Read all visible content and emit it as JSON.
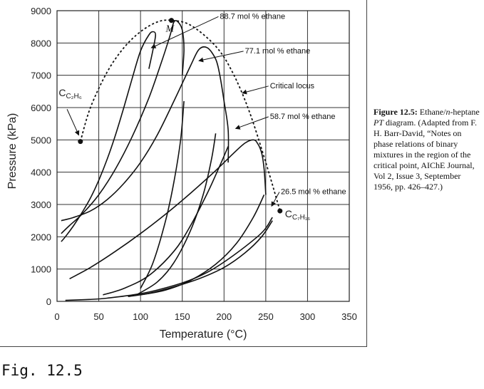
{
  "chart_data": {
    "type": "line",
    "xlabel": "Temperature (°C)",
    "ylabel": "Pressure (kPa)",
    "xlim": [
      0,
      350
    ],
    "ylim": [
      0,
      9000
    ],
    "xticks": [
      0,
      50,
      100,
      150,
      200,
      250,
      300,
      350
    ],
    "yticks": [
      0,
      1000,
      2000,
      3000,
      4000,
      5000,
      6000,
      7000,
      8000,
      9000
    ],
    "grid": true,
    "series": [
      {
        "name": "",
        "x": [
          5,
          10,
          20,
          30,
          40,
          50,
          60,
          70,
          80,
          90,
          100,
          110,
          115,
          118,
          115,
          110
        ],
        "y": [
          1850,
          2000,
          2350,
          2750,
          3200,
          3750,
          4400,
          5150,
          6000,
          6900,
          7750,
          8250,
          8350,
          8250,
          7800,
          7200
        ]
      },
      {
        "name": "",
        "x": [
          5,
          15,
          30,
          50,
          70,
          90,
          110,
          125,
          135,
          140,
          145,
          150,
          152,
          150
        ],
        "y": [
          2100,
          2350,
          2700,
          3300,
          4100,
          5100,
          6300,
          7400,
          8200,
          8650,
          8650,
          8400,
          7800,
          7000
        ]
      },
      {
        "name": "",
        "x": [
          5,
          20,
          40,
          60,
          80,
          100,
          120,
          140,
          160,
          170,
          180,
          190,
          195,
          200,
          205,
          205
        ],
        "y": [
          2500,
          2600,
          2800,
          3150,
          3650,
          4300,
          5150,
          6200,
          7300,
          7800,
          7850,
          7500,
          7000,
          6200,
          5300,
          4300
        ]
      },
      {
        "name": "",
        "x": [
          15,
          40,
          70,
          100,
          130,
          160,
          190,
          210,
          225,
          235,
          240,
          245,
          248,
          250
        ],
        "y": [
          700,
          1050,
          1550,
          2100,
          2700,
          3350,
          4050,
          4550,
          4900,
          5000,
          4900,
          4600,
          4100,
          3300
        ]
      },
      {
        "name": "",
        "x": [
          85,
          110,
          140,
          170,
          200,
          225,
          245,
          258
        ],
        "y": [
          150,
          250,
          450,
          700,
          1050,
          1500,
          2000,
          2500
        ]
      },
      {
        "name": "",
        "x": [
          100,
          130,
          160,
          190,
          215,
          235,
          248
        ],
        "y": [
          200,
          350,
          650,
          1150,
          1800,
          2600,
          3300
        ]
      },
      {
        "name": "",
        "x": [
          55,
          80,
          110,
          140,
          160,
          180,
          195,
          205
        ],
        "y": [
          200,
          400,
          800,
          1550,
          2350,
          3350,
          4200,
          4800
        ]
      },
      {
        "name": "",
        "x": [
          95,
          120,
          140,
          160,
          175,
          185,
          190
        ],
        "y": [
          200,
          600,
          1200,
          2200,
          3300,
          4400,
          5200
        ]
      },
      {
        "name": "",
        "x": [
          100,
          115,
          130,
          140,
          148,
          152
        ],
        "y": [
          400,
          1200,
          2500,
          3700,
          5000,
          6200
        ]
      },
      {
        "name": "",
        "x": [
          10,
          60,
          120,
          180,
          240,
          258
        ],
        "y": [
          30,
          100,
          350,
          900,
          2000,
          2600
        ]
      },
      {
        "name": "",
        "x": [
          28,
          40,
          60,
          80,
          100,
          120,
          137,
          160,
          190,
          210,
          230,
          250,
          267
        ],
        "y": [
          4950,
          6000,
          7100,
          7850,
          8350,
          8650,
          8700,
          8550,
          7900,
          7100,
          5900,
          4300,
          2800
        ],
        "dashed": true
      }
    ],
    "points": [
      {
        "label": "",
        "x": 28,
        "y": 4950
      },
      {
        "label": "M",
        "x": 137,
        "y": 8700
      },
      {
        "label": "",
        "x": 267,
        "y": 2800
      }
    ],
    "annotations": [
      {
        "text": "88.7 mol % ethane",
        "x": 195,
        "y": 8750
      },
      {
        "text": "77.1 mol % ethane",
        "x": 225,
        "y": 7680
      },
      {
        "text": "Critical locus",
        "x": 255,
        "y": 6600
      },
      {
        "text": "58.7 mol % ethane",
        "x": 255,
        "y": 5650
      },
      {
        "text": "26.5 mol % ethane",
        "x": 268,
        "y": 3320
      }
    ],
    "component_labels": {
      "ethane": {
        "main": "C",
        "sub": "C₂H₆"
      },
      "heptane": {
        "main": "C",
        "sub": "C₇H₁₆"
      }
    }
  },
  "caption": {
    "title": "Figure 12.5:",
    "body_1": " Ethane/",
    "italic_n": "n",
    "body_2": "-heptane ",
    "italic_pt": "PT",
    "body_3": " diagram. (Adapted from F. H. Barr-David, “Notes on phase relations of binary mixtures in the region of the critical point, AIChE Journal, Vol 2, Issue 3, September 1956, pp. 426–427.)"
  },
  "fig_label": "Fig. 12.5"
}
